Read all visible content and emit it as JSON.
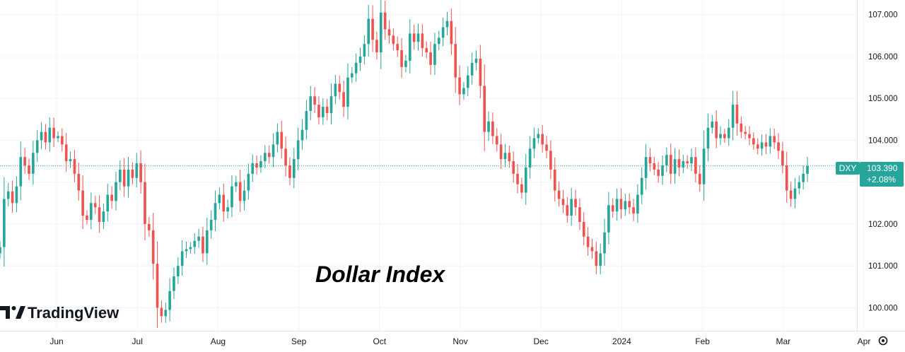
{
  "branding": {
    "logo_text": "TradingView"
  },
  "chart_data": {
    "type": "candlestick",
    "annotation": "Dollar Index",
    "symbol": "DXY",
    "last_price": "103.390",
    "change": "+2.08%",
    "last_price_value": 103.39,
    "y_range": [
      99.45,
      107.35
    ],
    "y_ticks": [
      {
        "value": 100,
        "label": "100.000"
      },
      {
        "value": 101,
        "label": "101.000"
      },
      {
        "value": 102,
        "label": "102.000"
      },
      {
        "value": 103,
        "label": "103.000"
      },
      {
        "value": 104,
        "label": "104.000"
      },
      {
        "value": 105,
        "label": "105.000"
      },
      {
        "value": 106,
        "label": "106.000"
      },
      {
        "value": 107,
        "label": "107.000"
      }
    ],
    "x_ticks": [
      "Jun",
      "Jul",
      "Aug",
      "Sep",
      "Oct",
      "Nov",
      "Dec",
      "2024",
      "Feb",
      "Mar",
      "Apr"
    ],
    "up_color": "#26a69a",
    "down_color": "#ef5350",
    "grid": true,
    "closes": [
      101.45,
      102.6,
      102.78,
      102.5,
      102.9,
      103.6,
      103.4,
      103.2,
      103.7,
      104.0,
      104.2,
      103.95,
      104.3,
      104.05,
      104.1,
      103.9,
      103.5,
      103.55,
      103.2,
      102.8,
      102.2,
      102.1,
      102.5,
      102.4,
      102.05,
      102.3,
      102.7,
      102.55,
      103.0,
      103.3,
      102.9,
      103.3,
      103.1,
      103.45,
      103.0,
      102.0,
      101.85,
      101.05,
      100.0,
      99.8,
      99.95,
      100.4,
      100.75,
      101.0,
      101.35,
      101.4,
      101.45,
      101.6,
      101.7,
      101.3,
      101.85,
      102.1,
      102.5,
      102.7,
      102.3,
      102.4,
      102.9,
      103.0,
      102.55,
      102.8,
      103.2,
      103.45,
      103.35,
      103.5,
      103.7,
      103.6,
      103.9,
      104.2,
      103.8,
      103.4,
      103.1,
      103.55,
      104.0,
      104.25,
      104.7,
      105.05,
      104.85,
      104.55,
      104.8,
      104.65,
      105.05,
      105.35,
      105.15,
      104.8,
      105.5,
      105.6,
      105.85,
      106.0,
      106.3,
      106.9,
      106.4,
      106.1,
      107.05,
      106.65,
      106.5,
      106.3,
      106.15,
      105.75,
      105.9,
      106.55,
      106.35,
      106.55,
      106.2,
      106.1,
      105.8,
      106.3,
      106.45,
      106.7,
      106.85,
      106.3,
      105.5,
      105.1,
      105.25,
      105.55,
      105.85,
      105.95,
      105.3,
      104.2,
      104.45,
      104.1,
      103.9,
      103.55,
      103.7,
      103.5,
      103.2,
      102.95,
      102.75,
      103.35,
      103.8,
      104.05,
      104.15,
      103.9,
      103.75,
      103.3,
      102.8,
      102.6,
      102.45,
      102.2,
      102.6,
      102.4,
      102.05,
      101.7,
      101.45,
      101.35,
      101.0,
      101.3,
      101.8,
      102.45,
      102.3,
      102.6,
      102.35,
      102.55,
      102.4,
      102.25,
      102.7,
      103.1,
      103.6,
      103.45,
      103.3,
      103.15,
      103.4,
      103.65,
      103.2,
      103.55,
      103.35,
      103.5,
      103.45,
      103.6,
      103.2,
      102.95,
      103.8,
      104.3,
      104.45,
      104.05,
      104.15,
      104.05,
      104.3,
      104.85,
      104.4,
      104.2,
      104.15,
      104.05,
      103.9,
      103.8,
      103.95,
      103.85,
      104.1,
      103.95,
      103.75,
      103.4,
      102.8,
      102.6,
      102.85,
      103.0,
      103.2,
      103.39
    ]
  }
}
